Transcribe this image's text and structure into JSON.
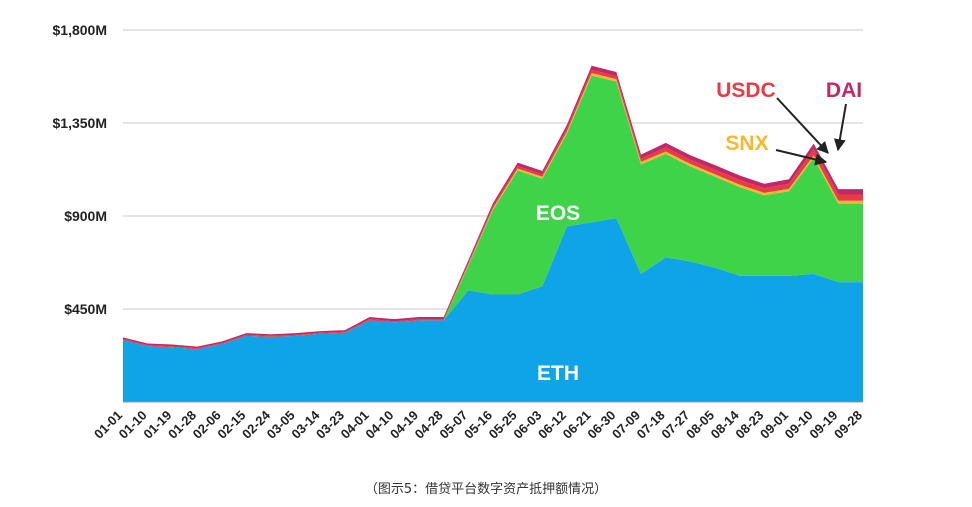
{
  "caption": "（图示5：借贷平台数字资产抵押额情况）",
  "colors": {
    "ETH": "#0fa3e8",
    "EOS": "#3fd34a",
    "SNX": "#f6b731",
    "USDC": "#e63c44",
    "DAI": "#c22768",
    "grid": "#c8c8c8"
  },
  "chart_data": {
    "type": "area",
    "stacked": true,
    "title": "",
    "xlabel": "",
    "ylabel": "",
    "ylim": [
      0,
      1800
    ],
    "y_unit": "$M",
    "yticks": [
      "$450M",
      "$900M",
      "$1,350M",
      "$1,800M"
    ],
    "xtick_labels": [
      "01-01",
      "01-10",
      "01-19",
      "01-28",
      "02-06",
      "02-15",
      "02-24",
      "03-05",
      "03-14",
      "03-23",
      "04-01",
      "04-10",
      "04-19",
      "04-28",
      "05-07",
      "05-16",
      "05-25",
      "06-03",
      "06-12",
      "06-21",
      "06-30",
      "07-09",
      "07-18",
      "07-27",
      "08-05",
      "08-14",
      "08-23",
      "09-01",
      "09-10",
      "09-19",
      "09-28"
    ],
    "x": [
      "01-01",
      "01-10",
      "01-19",
      "01-28",
      "02-06",
      "02-15",
      "02-24",
      "03-05",
      "03-14",
      "03-23",
      "04-01",
      "04-10",
      "04-19",
      "04-28",
      "05-07",
      "05-16",
      "05-25",
      "06-03",
      "06-12",
      "06-21",
      "06-30",
      "07-09",
      "07-18",
      "07-27",
      "08-05",
      "08-14",
      "08-23",
      "09-01",
      "09-10",
      "09-19",
      "09-28"
    ],
    "series": [
      {
        "name": "ETH",
        "values": [
          300,
          270,
          265,
          255,
          280,
          320,
          315,
          320,
          330,
          335,
          395,
          385,
          395,
          395,
          540,
          520,
          520,
          560,
          850,
          870,
          890,
          620,
          700,
          680,
          650,
          610,
          610,
          610,
          620,
          580,
          580
        ]
      },
      {
        "name": "EOS",
        "values": [
          0,
          0,
          0,
          0,
          0,
          0,
          0,
          0,
          0,
          0,
          0,
          0,
          0,
          0,
          120,
          410,
          600,
          520,
          450,
          710,
          660,
          530,
          500,
          460,
          440,
          430,
          390,
          410,
          560,
          380,
          380
        ]
      },
      {
        "name": "SNX",
        "values": [
          0,
          0,
          0,
          0,
          0,
          0,
          0,
          0,
          0,
          0,
          0,
          0,
          0,
          0,
          6,
          8,
          10,
          10,
          10,
          12,
          12,
          12,
          12,
          12,
          12,
          12,
          12,
          12,
          14,
          14,
          14
        ]
      },
      {
        "name": "USDC",
        "values": [
          5,
          5,
          5,
          5,
          5,
          5,
          5,
          5,
          5,
          5,
          6,
          6,
          6,
          6,
          8,
          10,
          12,
          12,
          14,
          15,
          15,
          15,
          20,
          20,
          22,
          22,
          22,
          24,
          30,
          30,
          30
        ]
      },
      {
        "name": "DAI",
        "values": [
          8,
          8,
          8,
          8,
          8,
          8,
          8,
          8,
          8,
          8,
          10,
          10,
          10,
          10,
          12,
          14,
          16,
          16,
          18,
          20,
          20,
          20,
          22,
          22,
          22,
          22,
          22,
          22,
          26,
          26,
          26
        ]
      }
    ],
    "inline_labels": [
      "EOS",
      "ETH"
    ],
    "annotations": [
      "USDC",
      "SNX",
      "DAI"
    ],
    "grid": true,
    "legend": "none"
  }
}
